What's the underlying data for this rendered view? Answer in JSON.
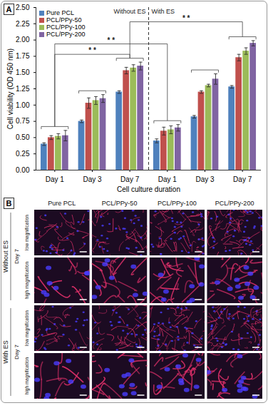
{
  "chart_data": {
    "type": "bar",
    "title": "A",
    "x_label": "Cell culture duration",
    "y_label": "Cell viability (OD 450 nm)",
    "categories": [
      "Day 1",
      "Day 3",
      "Day 7",
      "Day 1",
      "Day 3",
      "Day 7"
    ],
    "series": [
      {
        "name": "Pure PCL",
        "color": "#4f81bd",
        "values": [
          0.4,
          0.75,
          1.2,
          0.45,
          0.82,
          1.28
        ],
        "errors": [
          0.02,
          0.02,
          0.02,
          0.03,
          0.02,
          0.02
        ]
      },
      {
        "name": "PCL/PPy-50",
        "color": "#c0504d",
        "values": [
          0.5,
          1.03,
          1.53,
          0.6,
          1.2,
          1.73
        ],
        "errors": [
          0.03,
          0.08,
          0.05,
          0.06,
          0.02,
          0.05
        ]
      },
      {
        "name": "PCL/PPy-100",
        "color": "#9bbb59",
        "values": [
          0.52,
          1.07,
          1.57,
          0.62,
          1.3,
          1.83
        ],
        "errors": [
          0.04,
          0.06,
          0.05,
          0.06,
          0.02,
          0.05
        ]
      },
      {
        "name": "PCL/PPy-200",
        "color": "#8064a2",
        "values": [
          0.53,
          1.1,
          1.6,
          0.65,
          1.4,
          1.95
        ],
        "errors": [
          0.08,
          0.06,
          0.06,
          0.05,
          0.08,
          0.04
        ]
      }
    ],
    "ylim": [
      0,
      2.5
    ],
    "yticks": [
      {
        "value": 0,
        "label": "0.00"
      },
      {
        "value": 0.25,
        "label": "0.25"
      },
      {
        "value": 0.5,
        "label": "0.50"
      },
      {
        "value": 0.75,
        "label": "0.75"
      },
      {
        "value": 1,
        "label": "1.00"
      },
      {
        "value": 1.25,
        "label": "1.25"
      },
      {
        "value": 1.5,
        "label": "1.50"
      },
      {
        "value": 1.75,
        "label": "1.75"
      },
      {
        "value": 2,
        "label": "2.00"
      },
      {
        "value": 2.25,
        "label": "2.25"
      },
      {
        "value": 2.5,
        "label": "2.50"
      }
    ],
    "grid": false,
    "legend": "top-left",
    "section_labels": [
      "Without ES",
      "With ES"
    ],
    "brackets": [
      {
        "from": 0,
        "to": 2,
        "y": 1.78,
        "label": "* *"
      },
      {
        "from": 0,
        "to": 3,
        "y": 1.94,
        "label": "* *"
      },
      {
        "from": 2,
        "to": 5,
        "y": 2.28,
        "label": "* *"
      }
    ]
  },
  "panel_b": {
    "title": "B",
    "columns": [
      "Pure PCL",
      "PCL/PPy-50",
      "PCL/PPy-100",
      "PCL/PPy-200"
    ],
    "groups": [
      {
        "label": "Without ES",
        "day": "Day 7",
        "rows": [
          "low magnification",
          "high magnification"
        ]
      },
      {
        "label": "With ES",
        "day": "Day 7",
        "rows": [
          "low magnification",
          "high magnification"
        ]
      }
    ]
  }
}
